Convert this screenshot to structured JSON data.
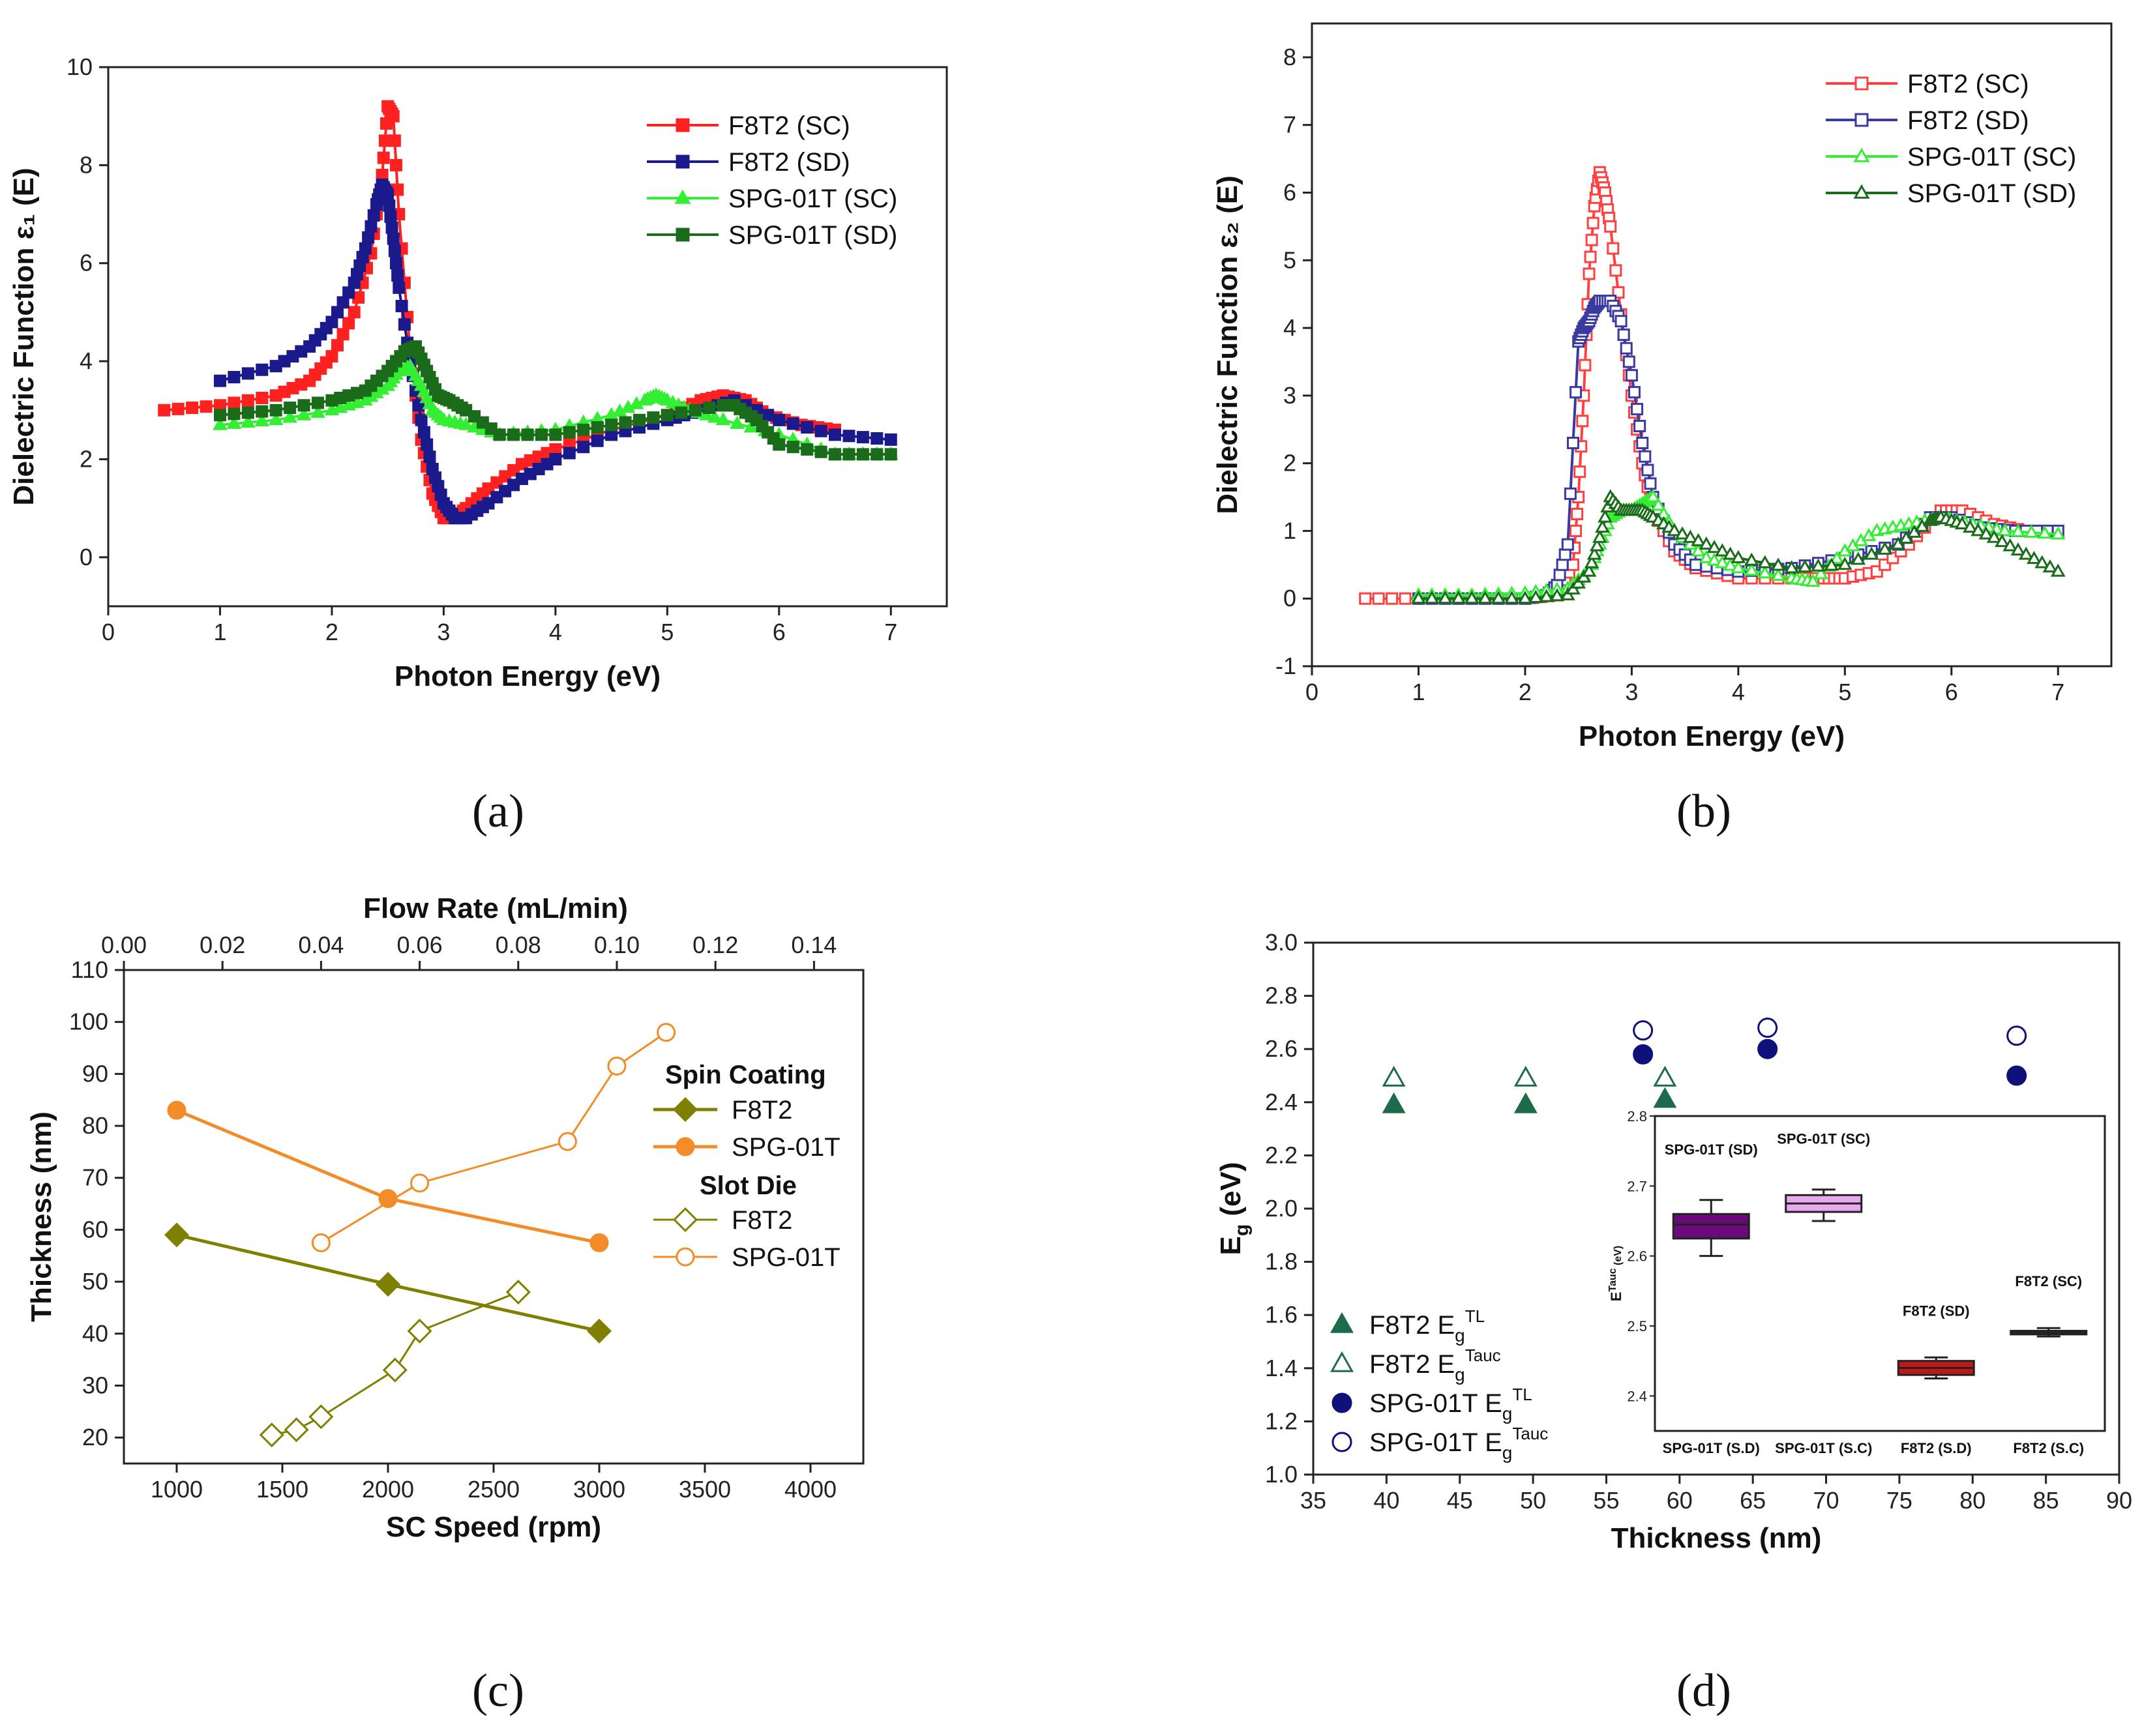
{
  "figure": {
    "panel_labels": [
      "(a)",
      "(b)",
      "(c)",
      "(d)"
    ]
  },
  "chart_data": [
    {
      "id": "a",
      "type": "line",
      "title": "",
      "xlabel": "Photon Energy (eV)",
      "ylabel": "Dielectric Function ε₁ (E)",
      "xlim": [
        0,
        7.5
      ],
      "ylim": [
        -1,
        10
      ],
      "xticks": [
        0,
        1,
        2,
        3,
        4,
        5,
        6,
        7
      ],
      "yticks": [
        0,
        2,
        4,
        6,
        8,
        10
      ],
      "legend_position": "top-right",
      "series": [
        {
          "name": "F8T2 (SC)",
          "color": "#ff2020",
          "marker": "square",
          "x": [
            0.5,
            1.0,
            1.5,
            1.8,
            2.0,
            2.2,
            2.35,
            2.45,
            2.5,
            2.55,
            2.6,
            2.7,
            2.8,
            2.9,
            3.0,
            3.1,
            3.2,
            3.4,
            3.7,
            4.0,
            4.5,
            5.0,
            5.3,
            5.5,
            5.7,
            5.9,
            6.2,
            6.5
          ],
          "y": [
            3.0,
            3.1,
            3.3,
            3.6,
            4.1,
            5.0,
            6.2,
            7.8,
            9.2,
            9.0,
            7.0,
            4.2,
            2.4,
            1.3,
            0.8,
            0.8,
            1.0,
            1.4,
            1.9,
            2.2,
            2.6,
            2.9,
            3.2,
            3.3,
            3.2,
            2.9,
            2.7,
            2.6
          ]
        },
        {
          "name": "F8T2 (SD)",
          "color": "#1a1a8c",
          "marker": "square",
          "x": [
            1.0,
            1.5,
            1.8,
            2.0,
            2.2,
            2.3,
            2.4,
            2.45,
            2.5,
            2.55,
            2.6,
            2.7,
            2.8,
            2.9,
            3.0,
            3.1,
            3.2,
            3.4,
            3.7,
            4.0,
            4.5,
            5.0,
            5.3,
            5.6,
            6.0,
            6.5,
            7.0
          ],
          "y": [
            3.6,
            3.9,
            4.3,
            4.8,
            5.6,
            6.3,
            7.2,
            7.6,
            7.4,
            6.5,
            5.5,
            4.0,
            2.8,
            1.8,
            1.1,
            0.8,
            0.8,
            1.1,
            1.6,
            2.0,
            2.5,
            2.8,
            3.0,
            3.2,
            2.8,
            2.5,
            2.4
          ]
        },
        {
          "name": "SPG-01T (SC)",
          "color": "#33ee33",
          "marker": "triangle",
          "x": [
            1.0,
            1.5,
            2.0,
            2.3,
            2.5,
            2.6,
            2.7,
            2.8,
            2.9,
            3.0,
            3.2,
            3.5,
            4.0,
            4.5,
            4.8,
            4.9,
            5.0,
            5.2,
            5.5,
            6.0,
            6.5,
            7.0
          ],
          "y": [
            2.7,
            2.8,
            3.0,
            3.2,
            3.5,
            3.8,
            3.9,
            3.5,
            3.0,
            2.8,
            2.7,
            2.5,
            2.6,
            2.9,
            3.2,
            3.3,
            3.2,
            3.0,
            2.8,
            2.5,
            2.1,
            2.1
          ]
        },
        {
          "name": "SPG-01T (SD)",
          "color": "#1a6b1a",
          "marker": "square",
          "x": [
            1.0,
            1.5,
            2.0,
            2.3,
            2.5,
            2.65,
            2.75,
            2.85,
            2.95,
            3.05,
            3.2,
            3.5,
            4.0,
            4.5,
            5.0,
            5.5,
            5.6,
            5.8,
            6.0,
            6.5,
            7.0
          ],
          "y": [
            2.9,
            3.0,
            3.2,
            3.4,
            3.8,
            4.2,
            4.3,
            3.8,
            3.3,
            3.2,
            3.0,
            2.5,
            2.5,
            2.7,
            2.9,
            3.1,
            3.1,
            2.8,
            2.3,
            2.1,
            2.1
          ]
        }
      ]
    },
    {
      "id": "b",
      "type": "line",
      "title": "",
      "xlabel": "Photon Energy (eV)",
      "ylabel": "Dielectric Function ε₂ (E)",
      "xlim": [
        0,
        7.5
      ],
      "ylim": [
        -1,
        8.5
      ],
      "xticks": [
        0,
        1,
        2,
        3,
        4,
        5,
        6,
        7
      ],
      "yticks": [
        -1,
        0,
        1,
        2,
        3,
        4,
        5,
        6,
        7,
        8
      ],
      "legend_position": "top-right",
      "series": [
        {
          "name": "F8T2 (SC)",
          "color": "#ff4040",
          "marker": "open-square",
          "x": [
            0.5,
            1.0,
            1.5,
            2.0,
            2.3,
            2.45,
            2.5,
            2.55,
            2.6,
            2.65,
            2.7,
            2.75,
            2.8,
            2.9,
            3.0,
            3.1,
            3.2,
            3.4,
            3.6,
            4.0,
            4.5,
            4.8,
            5.0,
            5.3,
            5.6,
            5.9,
            6.1,
            6.4,
            6.7,
            7.0
          ],
          "y": [
            0,
            0,
            0,
            0,
            0.05,
            0.5,
            1.5,
            3.0,
            4.8,
            5.8,
            6.3,
            6.0,
            5.5,
            4.2,
            3.0,
            2.0,
            1.3,
            0.7,
            0.45,
            0.3,
            0.3,
            0.3,
            0.3,
            0.4,
            0.8,
            1.3,
            1.3,
            1.1,
            1.0,
            1.0
          ]
        },
        {
          "name": "F8T2 (SD)",
          "color": "#3a3aa0",
          "marker": "open-square",
          "x": [
            1.0,
            1.5,
            2.0,
            2.2,
            2.3,
            2.4,
            2.5,
            2.55,
            2.6,
            2.65,
            2.7,
            2.8,
            2.9,
            3.0,
            3.1,
            3.2,
            3.4,
            3.6,
            4.0,
            4.5,
            5.0,
            5.5,
            5.8,
            6.0,
            6.3,
            6.6,
            7.0
          ],
          "y": [
            0,
            0,
            0,
            0.05,
            0.2,
            0.8,
            3.8,
            4.0,
            4.1,
            4.3,
            4.4,
            4.4,
            4.1,
            3.3,
            2.3,
            1.5,
            0.8,
            0.5,
            0.4,
            0.45,
            0.6,
            0.8,
            1.2,
            1.2,
            1.05,
            1.0,
            1.0
          ]
        },
        {
          "name": "SPG-01T (SC)",
          "color": "#33ee33",
          "marker": "open-triangle",
          "x": [
            1.0,
            1.5,
            2.0,
            2.4,
            2.6,
            2.7,
            2.8,
            2.9,
            3.0,
            3.1,
            3.2,
            3.4,
            3.7,
            4.0,
            4.5,
            4.7,
            5.0,
            5.3,
            5.6,
            5.9,
            6.2,
            6.5,
            7.0
          ],
          "y": [
            0.05,
            0.05,
            0.08,
            0.15,
            0.4,
            0.8,
            1.2,
            1.3,
            1.3,
            1.4,
            1.5,
            1.0,
            0.6,
            0.45,
            0.3,
            0.25,
            0.7,
            1.0,
            1.1,
            1.2,
            1.1,
            1.0,
            0.95
          ]
        },
        {
          "name": "SPG-01T (SD)",
          "color": "#1a6b1a",
          "marker": "open-triangle",
          "x": [
            1.0,
            1.5,
            2.0,
            2.4,
            2.6,
            2.7,
            2.8,
            2.9,
            3.0,
            3.1,
            3.2,
            3.4,
            3.7,
            4.0,
            4.5,
            5.0,
            5.5,
            5.8,
            5.9,
            6.1,
            6.4,
            6.7,
            7.0
          ],
          "y": [
            0,
            0,
            0,
            0.05,
            0.4,
            0.9,
            1.5,
            1.3,
            1.3,
            1.3,
            1.2,
            1.0,
            0.8,
            0.6,
            0.45,
            0.5,
            0.8,
            1.15,
            1.2,
            1.1,
            0.9,
            0.65,
            0.4
          ]
        }
      ]
    },
    {
      "id": "c",
      "type": "line",
      "title": "",
      "xlabel": "SC Speed (rpm)",
      "x2label": "Flow Rate (mL/min)",
      "ylabel": "Thickness (nm)",
      "xlim": [
        750,
        4250
      ],
      "x2lim": [
        0,
        0.15
      ],
      "ylim": [
        15,
        110
      ],
      "xticks": [
        1000,
        1500,
        2000,
        2500,
        3000,
        3500,
        4000
      ],
      "x2ticks": [
        "0.00",
        "0.02",
        "0.04",
        "0.06",
        "0.08",
        "0.10",
        "0.12",
        "0.14"
      ],
      "yticks": [
        20,
        30,
        40,
        50,
        60,
        70,
        80,
        90,
        100,
        110
      ],
      "legend_position": "right",
      "legend_groups": [
        "Spin Coating",
        "Slot Die"
      ],
      "series": [
        {
          "name": "F8T2",
          "group": "Spin Coating",
          "axis": "bottom",
          "color": "#808000",
          "marker": "diamond",
          "x": [
            1000,
            2000,
            3000
          ],
          "y": [
            59,
            49.5,
            40.5
          ]
        },
        {
          "name": "SPG-01T",
          "group": "Spin Coating",
          "axis": "bottom",
          "color": "#f28c28",
          "marker": "circle",
          "x": [
            1000,
            2000,
            3000
          ],
          "y": [
            83,
            66,
            57.5
          ]
        },
        {
          "name": "F8T2",
          "group": "Slot Die",
          "axis": "top",
          "color": "#808000",
          "marker": "open-diamond",
          "x": [
            0.03,
            0.035,
            0.04,
            0.055,
            0.06,
            0.08
          ],
          "y": [
            20.5,
            21.5,
            24,
            33,
            40.5,
            48
          ]
        },
        {
          "name": "SPG-01T",
          "group": "Slot Die",
          "axis": "top",
          "color": "#f28c28",
          "marker": "open-circle",
          "x": [
            0.04,
            0.06,
            0.09,
            0.1,
            0.11
          ],
          "y": [
            57.5,
            69,
            77,
            91.5,
            98
          ]
        }
      ]
    },
    {
      "id": "d",
      "type": "scatter",
      "title": "",
      "xlabel": "Thickness (nm)",
      "ylabel": "E",
      "ylabel_sub": "g",
      "ylabel_unit": " (eV)",
      "xlim": [
        35,
        90
      ],
      "ylim": [
        1.0,
        3.0
      ],
      "xticks": [
        35,
        40,
        45,
        50,
        55,
        60,
        65,
        70,
        75,
        80,
        85,
        90
      ],
      "yticks": [
        "1.0",
        "1.2",
        "1.4",
        "1.6",
        "1.8",
        "2.0",
        "2.2",
        "2.4",
        "2.6",
        "2.8",
        "3.0"
      ],
      "legend_position": "bottom-left",
      "series": [
        {
          "name": "F8T2 E",
          "sub": "g",
          "sup": "TL",
          "color": "#1d6b4a",
          "marker": "triangle",
          "x": [
            40.5,
            49.5,
            59
          ],
          "y": [
            2.39,
            2.39,
            2.41
          ]
        },
        {
          "name": "F8T2 E",
          "sub": "g",
          "sup": "Tauc",
          "color": "#1d6b4a",
          "marker": "open-triangle",
          "x": [
            40.5,
            49.5,
            59
          ],
          "y": [
            2.49,
            2.49,
            2.49
          ]
        },
        {
          "name": "SPG-01T E",
          "sub": "g",
          "sup": "TL",
          "color": "#10107a",
          "marker": "circle",
          "x": [
            57.5,
            66,
            83
          ],
          "y": [
            2.58,
            2.6,
            2.5
          ]
        },
        {
          "name": "SPG-01T E",
          "sub": "g",
          "sup": "Tauc",
          "color": "#10107a",
          "marker": "open-circle",
          "x": [
            57.5,
            66,
            83
          ],
          "y": [
            2.67,
            2.68,
            2.65
          ]
        }
      ],
      "inset": {
        "type": "box",
        "ylabel": "E",
        "ylabel_sub": "g",
        "ylabel_sup": "Tauc",
        "ylabel_unit": " (eV)",
        "ylim": [
          2.35,
          2.8
        ],
        "yticks": [
          "2.4",
          "2.5",
          "2.6",
          "2.7",
          "2.8"
        ],
        "categories": [
          "SPG-01T (S.D)",
          "SPG-01T (S.C)",
          "F8T2 (S.D)",
          "F8T2 (S.C)"
        ],
        "box_titles": [
          "SPG-01T (SD)",
          "SPG-01T (SC)",
          "F8T2 (SD)",
          "F8T2 (SC)"
        ],
        "boxes": [
          {
            "min": 2.6,
            "q1": 2.625,
            "median": 2.645,
            "q3": 2.66,
            "max": 2.68,
            "color": "#6a0a7a"
          },
          {
            "min": 2.65,
            "q1": 2.663,
            "median": 2.675,
            "q3": 2.687,
            "max": 2.695,
            "color": "#e8a8f0"
          },
          {
            "min": 2.425,
            "q1": 2.43,
            "median": 2.44,
            "q3": 2.45,
            "max": 2.455,
            "color": "#c01818"
          },
          {
            "min": 2.485,
            "q1": 2.488,
            "median": 2.49,
            "q3": 2.493,
            "max": 2.497,
            "color": "#7a2a10"
          }
        ]
      }
    }
  ]
}
